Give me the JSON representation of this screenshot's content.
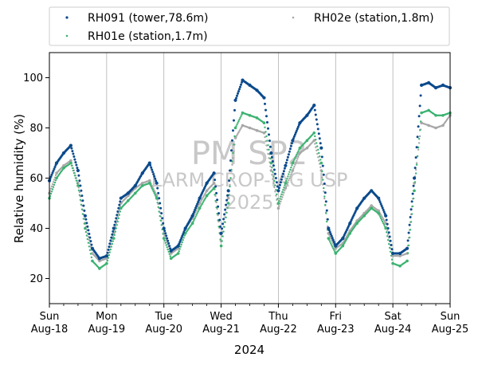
{
  "chart_data": {
    "type": "scatter",
    "title": "",
    "xlabel": "2024",
    "ylabel": "Relative humidity (%)",
    "xlim": [
      "2024-08-18",
      "2024-08-25"
    ],
    "ylim": [
      10,
      110
    ],
    "yticks": [
      20,
      40,
      60,
      80,
      100
    ],
    "x_major_ticks": [
      {
        "date": "2024-08-18",
        "line1": "Sun",
        "line2": "Aug-18"
      },
      {
        "date": "2024-08-19",
        "line1": "Mon",
        "line2": "Aug-19"
      },
      {
        "date": "2024-08-20",
        "line1": "Tue",
        "line2": "Aug-20"
      },
      {
        "date": "2024-08-21",
        "line1": "Wed",
        "line2": "Aug-21"
      },
      {
        "date": "2024-08-22",
        "line1": "Thu",
        "line2": "Aug-22"
      },
      {
        "date": "2024-08-23",
        "line1": "Fri",
        "line2": "Aug-23"
      },
      {
        "date": "2024-08-24",
        "line1": "Sat",
        "line2": "Aug-24"
      },
      {
        "date": "2024-08-25",
        "line1": "Sun",
        "line2": "Aug-25"
      }
    ],
    "grid": "x-major",
    "legend": {
      "placement": "above-plot",
      "columns": 2
    },
    "watermark": {
      "line1": "PM SP2",
      "line2": "LARM CROP-IAG USP",
      "line3": "2025"
    },
    "series": [
      {
        "name": "RH091 (tower,78.6m)",
        "color": "#0b4a8c",
        "x": [
          "2024-08-18 00:00",
          "2024-08-18 03:00",
          "2024-08-18 06:00",
          "2024-08-18 09:00",
          "2024-08-18 12:00",
          "2024-08-18 15:00",
          "2024-08-18 18:00",
          "2024-08-18 21:00",
          "2024-08-19 00:00",
          "2024-08-19 03:00",
          "2024-08-19 06:00",
          "2024-08-19 09:00",
          "2024-08-19 12:00",
          "2024-08-19 15:00",
          "2024-08-19 18:00",
          "2024-08-19 21:00",
          "2024-08-20 00:00",
          "2024-08-20 03:00",
          "2024-08-20 06:00",
          "2024-08-20 09:00",
          "2024-08-20 12:00",
          "2024-08-20 15:00",
          "2024-08-20 18:00",
          "2024-08-20 21:00",
          "2024-08-21 00:00",
          "2024-08-21 03:00",
          "2024-08-21 06:00",
          "2024-08-21 09:00",
          "2024-08-21 12:00",
          "2024-08-21 15:00",
          "2024-08-21 18:00",
          "2024-08-21 21:00",
          "2024-08-22 00:00",
          "2024-08-22 03:00",
          "2024-08-22 06:00",
          "2024-08-22 09:00",
          "2024-08-22 12:00",
          "2024-08-22 15:00",
          "2024-08-22 18:00",
          "2024-08-22 21:00",
          "2024-08-23 00:00",
          "2024-08-23 03:00",
          "2024-08-23 06:00",
          "2024-08-23 09:00",
          "2024-08-23 12:00",
          "2024-08-23 15:00",
          "2024-08-23 18:00",
          "2024-08-23 21:00",
          "2024-08-24 00:00",
          "2024-08-24 03:00",
          "2024-08-24 06:00",
          "2024-08-24 09:00",
          "2024-08-24 12:00",
          "2024-08-24 15:00",
          "2024-08-24 18:00",
          "2024-08-24 21:00",
          "2024-08-25 00:00"
        ],
        "values": [
          59,
          66,
          70,
          73,
          63,
          45,
          32,
          28,
          29,
          40,
          52,
          54,
          57,
          62,
          66,
          58,
          40,
          31,
          33,
          40,
          45,
          52,
          58,
          62,
          38,
          55,
          91,
          99,
          97,
          95,
          92,
          70,
          55,
          65,
          75,
          82,
          85,
          89,
          72,
          40,
          33,
          36,
          42,
          48,
          52,
          55,
          52,
          45,
          30,
          30,
          32,
          60,
          97,
          98,
          96,
          97,
          96
        ]
      },
      {
        "name": "RH01e (station,1.7m)",
        "color": "#3cb371",
        "x": [
          "2024-08-18 00:00",
          "2024-08-18 03:00",
          "2024-08-18 06:00",
          "2024-08-18 09:00",
          "2024-08-18 12:00",
          "2024-08-18 15:00",
          "2024-08-18 18:00",
          "2024-08-18 21:00",
          "2024-08-19 00:00",
          "2024-08-19 03:00",
          "2024-08-19 06:00",
          "2024-08-19 09:00",
          "2024-08-19 12:00",
          "2024-08-19 15:00",
          "2024-08-19 18:00",
          "2024-08-19 21:00",
          "2024-08-20 00:00",
          "2024-08-20 03:00",
          "2024-08-20 06:00",
          "2024-08-20 09:00",
          "2024-08-20 12:00",
          "2024-08-20 15:00",
          "2024-08-20 18:00",
          "2024-08-20 21:00",
          "2024-08-21 00:00",
          "2024-08-21 03:00",
          "2024-08-21 06:00",
          "2024-08-21 09:00",
          "2024-08-21 12:00",
          "2024-08-21 15:00",
          "2024-08-21 18:00",
          "2024-08-21 21:00",
          "2024-08-22 00:00",
          "2024-08-22 03:00",
          "2024-08-22 06:00",
          "2024-08-22 09:00",
          "2024-08-22 12:00",
          "2024-08-22 15:00",
          "2024-08-22 18:00",
          "2024-08-22 21:00",
          "2024-08-23 00:00",
          "2024-08-23 03:00",
          "2024-08-23 06:00",
          "2024-08-23 09:00",
          "2024-08-23 12:00",
          "2024-08-23 15:00",
          "2024-08-23 18:00",
          "2024-08-23 21:00",
          "2024-08-24 00:00",
          "2024-08-24 03:00",
          "2024-08-24 06:00",
          "2024-08-24 09:00",
          "2024-08-24 12:00",
          "2024-08-24 15:00",
          "2024-08-24 18:00",
          "2024-08-24 21:00",
          "2024-08-25 00:00"
        ],
        "values": [
          52,
          60,
          64,
          66,
          57,
          40,
          27,
          24,
          26,
          36,
          48,
          51,
          54,
          57,
          58,
          52,
          36,
          28,
          30,
          38,
          42,
          48,
          53,
          56,
          33,
          50,
          80,
          86,
          85,
          84,
          82,
          66,
          50,
          58,
          66,
          72,
          75,
          78,
          66,
          36,
          30,
          33,
          38,
          42,
          45,
          48,
          46,
          40,
          26,
          25,
          27,
          55,
          86,
          87,
          85,
          85,
          86
        ]
      },
      {
        "name": "RH02e (station,1.8m)",
        "color": "#a8a8a8",
        "x": [
          "2024-08-18 00:00",
          "2024-08-18 03:00",
          "2024-08-18 06:00",
          "2024-08-18 09:00",
          "2024-08-18 12:00",
          "2024-08-18 15:00",
          "2024-08-18 18:00",
          "2024-08-18 21:00",
          "2024-08-19 00:00",
          "2024-08-19 03:00",
          "2024-08-19 06:00",
          "2024-08-19 09:00",
          "2024-08-19 12:00",
          "2024-08-19 15:00",
          "2024-08-19 18:00",
          "2024-08-19 21:00",
          "2024-08-20 00:00",
          "2024-08-20 03:00",
          "2024-08-20 06:00",
          "2024-08-20 09:00",
          "2024-08-20 12:00",
          "2024-08-20 15:00",
          "2024-08-20 18:00",
          "2024-08-20 21:00",
          "2024-08-21 00:00",
          "2024-08-21 03:00",
          "2024-08-21 06:00",
          "2024-08-21 09:00",
          "2024-08-21 12:00",
          "2024-08-21 15:00",
          "2024-08-21 18:00",
          "2024-08-21 21:00",
          "2024-08-22 00:00",
          "2024-08-22 03:00",
          "2024-08-22 06:00",
          "2024-08-22 09:00",
          "2024-08-22 12:00",
          "2024-08-22 15:00",
          "2024-08-22 18:00",
          "2024-08-22 21:00",
          "2024-08-23 00:00",
          "2024-08-23 03:00",
          "2024-08-23 06:00",
          "2024-08-23 09:00",
          "2024-08-23 12:00",
          "2024-08-23 15:00",
          "2024-08-23 18:00",
          "2024-08-23 21:00",
          "2024-08-24 00:00",
          "2024-08-24 03:00",
          "2024-08-24 06:00",
          "2024-08-24 09:00",
          "2024-08-24 12:00",
          "2024-08-24 15:00",
          "2024-08-24 18:00",
          "2024-08-24 21:00",
          "2024-08-25 00:00"
        ],
        "values": [
          54,
          62,
          65,
          67,
          58,
          42,
          30,
          27,
          28,
          38,
          50,
          53,
          56,
          58,
          59,
          53,
          38,
          30,
          32,
          40,
          44,
          50,
          55,
          58,
          35,
          52,
          76,
          81,
          80,
          79,
          78,
          63,
          48,
          56,
          63,
          70,
          72,
          75,
          63,
          38,
          32,
          34,
          39,
          43,
          46,
          49,
          47,
          42,
          29,
          29,
          30,
          58,
          82,
          81,
          80,
          81,
          85
        ]
      }
    ]
  }
}
